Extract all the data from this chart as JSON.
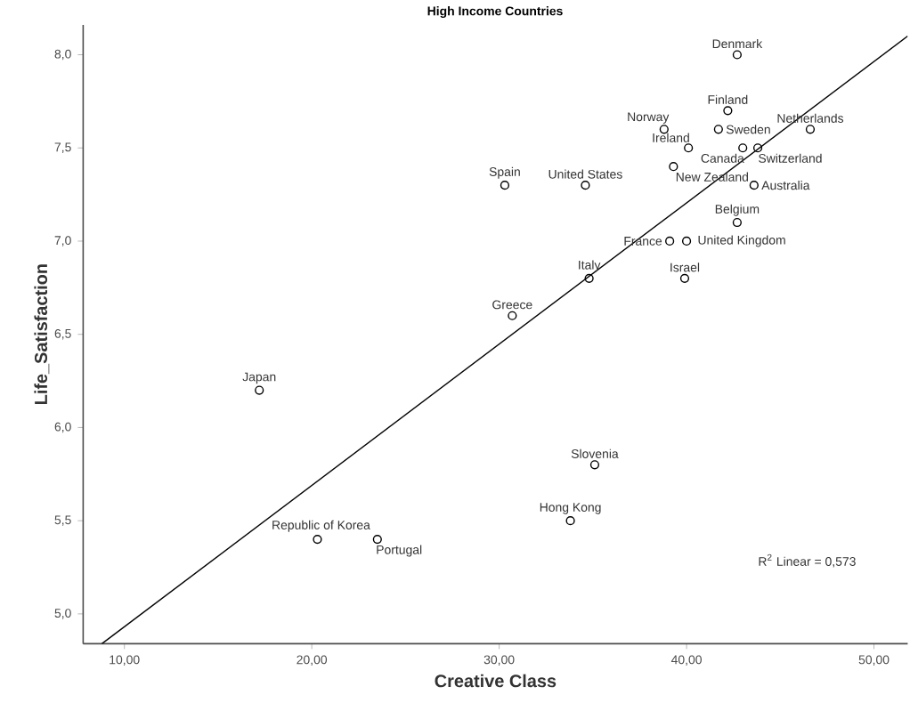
{
  "chart_data": {
    "type": "scatter",
    "title": "High Income Countries",
    "xlabel": "Creative Class",
    "ylabel": "Life_Satisfaction",
    "xlim": [
      7.8,
      51.8
    ],
    "ylim": [
      4.84,
      8.16
    ],
    "xticks": [
      {
        "value": 10,
        "label": "10,00"
      },
      {
        "value": 20,
        "label": "20,00"
      },
      {
        "value": 30,
        "label": "30,00"
      },
      {
        "value": 40,
        "label": "40,00"
      },
      {
        "value": 50,
        "label": "50,00"
      }
    ],
    "yticks": [
      {
        "value": 5,
        "label": "5,0"
      },
      {
        "value": 5.5,
        "label": "5,5"
      },
      {
        "value": 6,
        "label": "6,0"
      },
      {
        "value": 6.5,
        "label": "6,5"
      },
      {
        "value": 7,
        "label": "7,0"
      },
      {
        "value": 7.5,
        "label": "7,5"
      },
      {
        "value": 8,
        "label": "8,0"
      }
    ],
    "marker": "circle",
    "series": [
      {
        "color": "#000000",
        "x": [
          42.7,
          42.2,
          46.6,
          38.8,
          41.7,
          43.0,
          43.8,
          40.1,
          39.3,
          34.6,
          30.3,
          43.6,
          42.7,
          39.1,
          40.0,
          39.9,
          34.8,
          30.7,
          17.2,
          35.1,
          33.8,
          20.3,
          23.5
        ],
        "values": [
          8.0,
          7.7,
          7.6,
          7.6,
          7.6,
          7.5,
          7.5,
          7.5,
          7.4,
          7.3,
          7.3,
          7.3,
          7.1,
          7.0,
          7.0,
          6.8,
          6.8,
          6.6,
          6.2,
          5.8,
          5.5,
          5.4,
          5.4
        ]
      },
      {
        "type": "line",
        "color": "#000000",
        "marker": "none",
        "x": [
          8.8,
          51.8
        ],
        "values": [
          4.84,
          8.1
        ]
      }
    ],
    "annotations": [
      {
        "text": "Denmark",
        "x": 42.7,
        "y": 8.0
      },
      {
        "text": "Finland",
        "x": 42.2,
        "y": 7.7
      },
      {
        "text": "Netherlands",
        "x": 46.6,
        "y": 7.6
      },
      {
        "text": "Norway",
        "x": 38.8,
        "y": 7.6
      },
      {
        "text": "Sweden",
        "x": 41.7,
        "y": 7.6
      },
      {
        "text": "Canada",
        "x": 43.0,
        "y": 7.5
      },
      {
        "text": "Switzerland",
        "x": 43.8,
        "y": 7.5
      },
      {
        "text": "Ireland",
        "x": 40.1,
        "y": 7.5
      },
      {
        "text": "New Zealand",
        "x": 39.3,
        "y": 7.4
      },
      {
        "text": "United States",
        "x": 34.6,
        "y": 7.3
      },
      {
        "text": "Spain",
        "x": 30.3,
        "y": 7.3
      },
      {
        "text": "Australia",
        "x": 43.6,
        "y": 7.3
      },
      {
        "text": "Belgium",
        "x": 42.7,
        "y": 7.1
      },
      {
        "text": "France",
        "x": 39.1,
        "y": 7.0
      },
      {
        "text": "United Kingdom",
        "x": 40.0,
        "y": 7.0
      },
      {
        "text": "Israel",
        "x": 39.9,
        "y": 6.8
      },
      {
        "text": "Italy",
        "x": 34.8,
        "y": 6.8
      },
      {
        "text": "Greece",
        "x": 30.7,
        "y": 6.6
      },
      {
        "text": "Japan",
        "x": 17.2,
        "y": 6.2
      },
      {
        "text": "Slovenia",
        "x": 35.1,
        "y": 5.8
      },
      {
        "text": "Hong Kong",
        "x": 33.8,
        "y": 5.5
      },
      {
        "text": "Republic of Korea",
        "x": 20.3,
        "y": 5.4
      },
      {
        "text": "Portugal",
        "x": 23.5,
        "y": 5.4
      },
      "R$^{2}$ Linear = 0,573"
    ]
  }
}
